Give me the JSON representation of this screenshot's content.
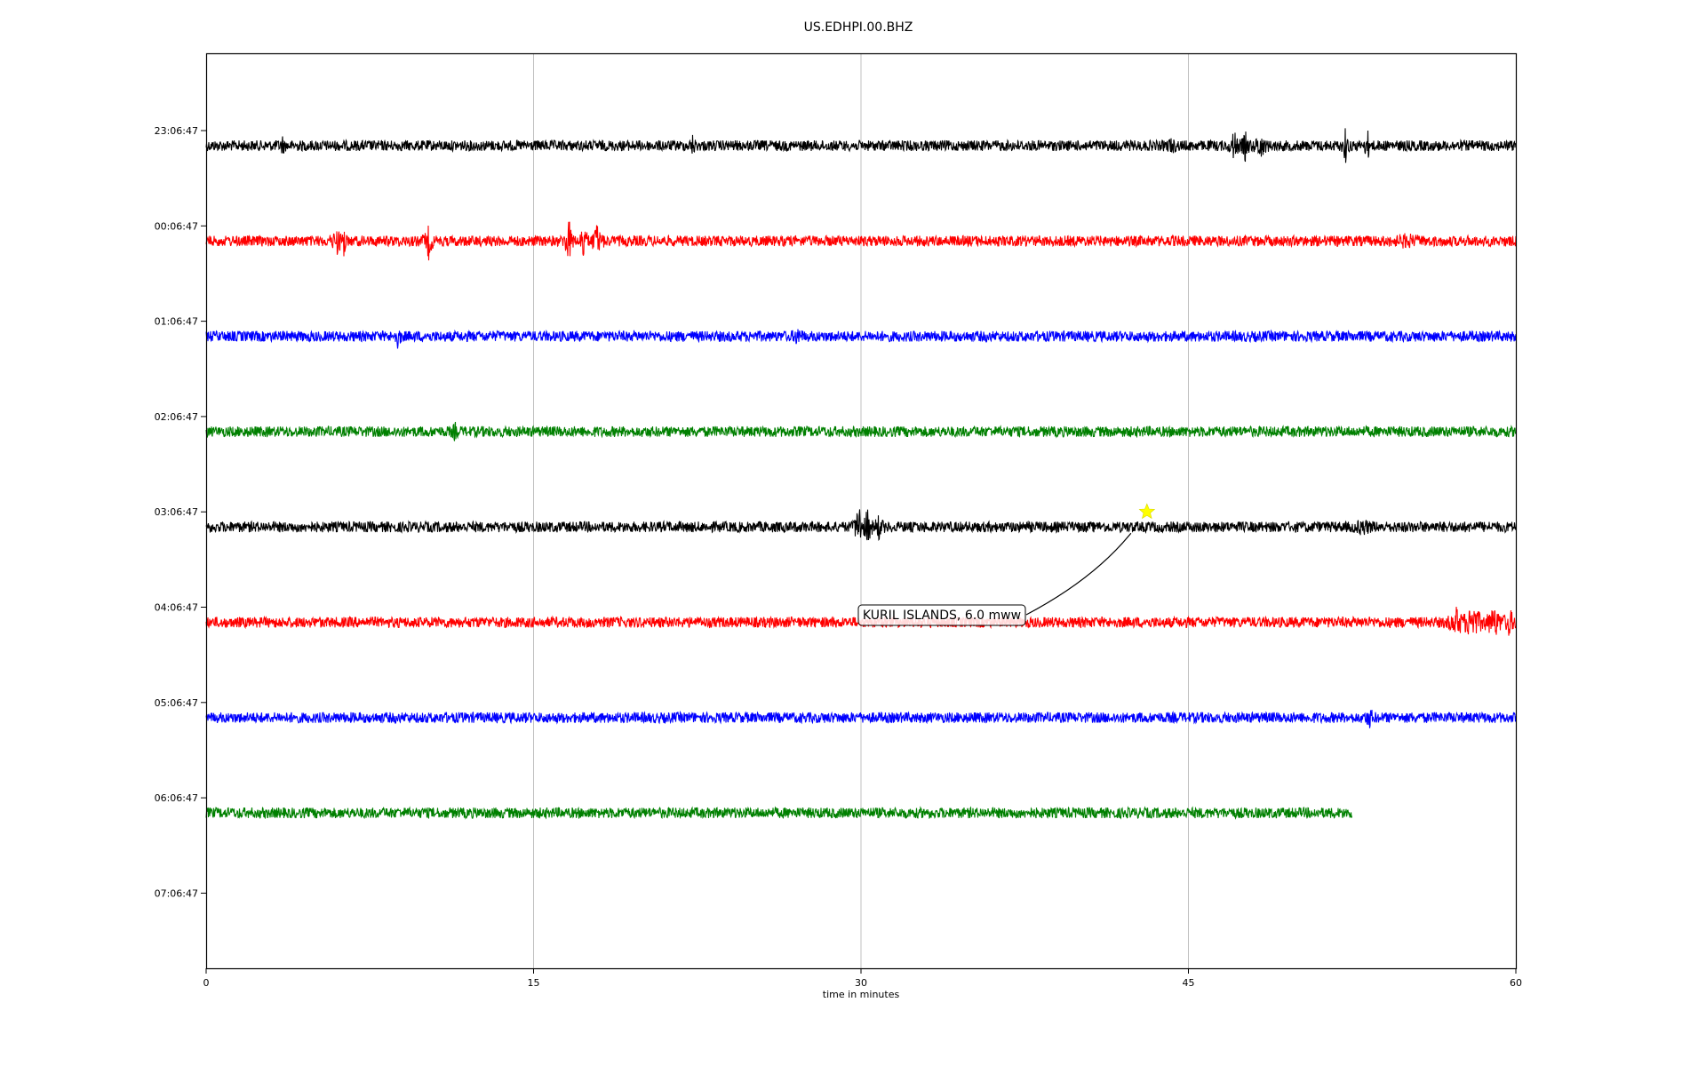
{
  "chart_data": {
    "type": "line",
    "title": "US.EDHPI.00.BHZ",
    "xlabel": "time in minutes",
    "ylabel": "",
    "xlim": [
      0,
      60
    ],
    "x_ticks": [
      "0",
      "15",
      "30",
      "45",
      "60"
    ],
    "x_tick_values": [
      0,
      15,
      30,
      45,
      60
    ],
    "y_ticks": [
      "23:06:47",
      "00:06:47",
      "01:06:47",
      "02:06:47",
      "03:06:47",
      "04:06:47",
      "05:06:47",
      "06:06:47",
      "07:06:47"
    ],
    "grid": "vertical",
    "colors": [
      "#000000",
      "#ff0000",
      "#0000ff",
      "#008000"
    ],
    "series": [
      {
        "row": 0,
        "color": "#000000",
        "start_min": 0,
        "end_min": 60,
        "noise": 1.0,
        "bursts": [
          [
            44.2,
            5,
            0.4
          ],
          [
            47.1,
            16,
            0.3
          ],
          [
            47.6,
            13,
            0.3
          ],
          [
            48.3,
            12,
            0.4
          ],
          [
            52.2,
            19,
            0.2
          ],
          [
            53.2,
            16,
            0.2
          ],
          [
            3.5,
            7,
            0.2
          ],
          [
            22.3,
            9,
            0.2
          ]
        ]
      },
      {
        "row": 1,
        "color": "#ff0000",
        "start_min": 0,
        "end_min": 60,
        "noise": 1.0,
        "bursts": [
          [
            6.0,
            12,
            0.4
          ],
          [
            6.3,
            25,
            0.15
          ],
          [
            10.2,
            17,
            0.3
          ],
          [
            16.6,
            25,
            0.3
          ],
          [
            17.3,
            32,
            0.2
          ],
          [
            17.9,
            16,
            0.4
          ],
          [
            55,
            4,
            1.0
          ]
        ]
      },
      {
        "row": 2,
        "color": "#0000ff",
        "start_min": 0,
        "end_min": 60,
        "noise": 1.0,
        "bursts": [
          [
            8.8,
            12,
            0.2
          ],
          [
            27.1,
            8,
            0.3
          ]
        ]
      },
      {
        "row": 3,
        "color": "#008000",
        "start_min": 0,
        "end_min": 60,
        "noise": 1.0,
        "bursts": [
          [
            11.4,
            7,
            0.2
          ]
        ]
      },
      {
        "row": 4,
        "color": "#000000",
        "start_min": 0,
        "end_min": 60,
        "noise": 1.0,
        "bursts": [
          [
            29.9,
            30,
            0.3
          ],
          [
            30.3,
            20,
            0.3
          ],
          [
            30.8,
            12,
            0.3
          ],
          [
            53.0,
            6,
            0.6
          ]
        ]
      },
      {
        "row": 5,
        "color": "#ff0000",
        "start_min": 0,
        "end_min": 60,
        "noise": 1.0,
        "bursts": [
          [
            57.3,
            14,
            0.6
          ],
          [
            58.0,
            18,
            0.8
          ],
          [
            59.0,
            14,
            0.8
          ],
          [
            59.7,
            13,
            0.4
          ]
        ]
      },
      {
        "row": 6,
        "color": "#0000ff",
        "start_min": 0,
        "end_min": 60,
        "noise": 1.0,
        "bursts": [
          [
            53.3,
            8,
            0.3
          ]
        ]
      },
      {
        "row": 7,
        "color": "#008000",
        "start_min": 0,
        "end_min": 52.5,
        "noise": 1.0,
        "bursts": []
      }
    ],
    "annotations": [
      {
        "text": "KURIL ISLANDS, 6.0 mww",
        "event_row": 4,
        "event_min": 43.1,
        "marker": "star",
        "marker_color": "#ffff00"
      }
    ]
  }
}
